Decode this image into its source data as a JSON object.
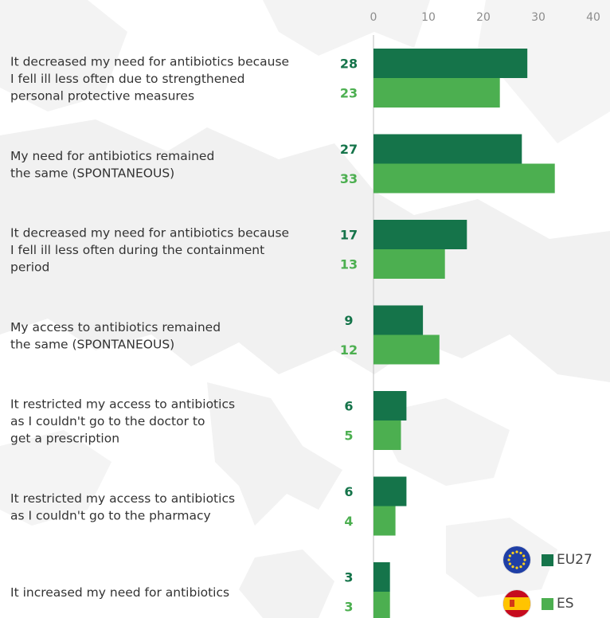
{
  "colors": {
    "eu27": "#15744a",
    "es": "#4caf50",
    "tick_text": "#8c8c8c",
    "label_text": "#333333",
    "axis_line": "#bfbfbf",
    "map_fill": "#f1f1f1"
  },
  "chart_data": {
    "type": "bar",
    "orientation": "horizontal",
    "title": "",
    "xlabel": "",
    "ylabel": "",
    "xlim": [
      0,
      40
    ],
    "ticks": [
      0,
      10,
      20,
      30,
      40
    ],
    "tick_labels": [
      "0",
      "10",
      "20",
      "30",
      "40"
    ],
    "grid": false,
    "legend_position": "bottom-right",
    "categories": [
      [
        "It decreased my need for antibiotics because",
        "I fell ill less often due to strengthened",
        "personal protective measures"
      ],
      [
        "My need for antibiotics remained",
        "the same (SPONTANEOUS)"
      ],
      [
        "It decreased my need for antibiotics because",
        "I fell ill less often during the containment",
        "period"
      ],
      [
        "My access to antibiotics remained",
        "the same (SPONTANEOUS)"
      ],
      [
        "It restricted my access to antibiotics",
        "as I couldn't go to the doctor to",
        "get a prescription"
      ],
      [
        "It restricted my access to antibiotics",
        "as I couldn't go to the pharmacy"
      ],
      [
        "It increased my need for antibiotics"
      ]
    ],
    "series": [
      {
        "name": "EU27",
        "values": [
          28,
          27,
          17,
          9,
          6,
          6,
          3
        ],
        "labels": [
          "28",
          "27",
          "17",
          "9",
          "6",
          "6",
          "3"
        ]
      },
      {
        "name": "ES",
        "values": [
          23,
          33,
          13,
          12,
          5,
          4,
          3
        ],
        "labels": [
          "23",
          "33",
          "13",
          "12",
          "5",
          "4",
          "3"
        ]
      }
    ]
  },
  "legend": {
    "eu27_label": "EU27",
    "es_label": "ES",
    "eu27_icon": "eu-flag-icon",
    "es_icon": "spain-flag-icon"
  }
}
